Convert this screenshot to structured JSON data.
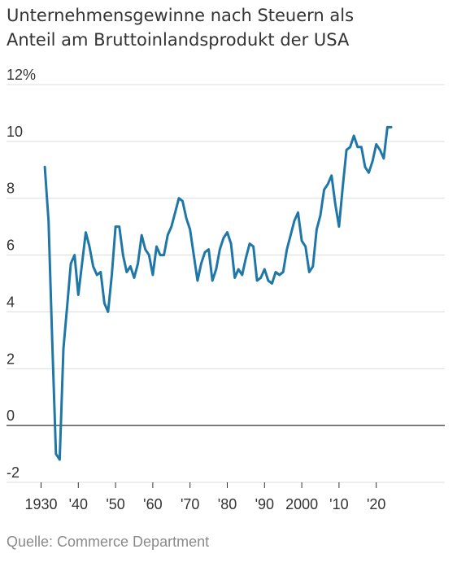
{
  "title_line1": "Unternehmensgewinne nach Steuern als",
  "title_line2": "Anteil am Bruttoinlandsprodukt der USA",
  "source": "Quelle: Commerce Department",
  "colors": {
    "line": "#1f77a8",
    "grid": "#dcdcdc",
    "zero": "#333333",
    "text": "#333333",
    "source": "#8a8a8a"
  },
  "chart_data": {
    "type": "line",
    "title": "Unternehmensgewinne nach Steuern als Anteil am Bruttoinlandsprodukt der USA",
    "xlabel": "",
    "ylabel": "",
    "xlim": [
      1929,
      2024
    ],
    "ylim": [
      -2,
      12
    ],
    "grid": true,
    "y_ticks": [
      {
        "value": 12,
        "label": "12%"
      },
      {
        "value": 10,
        "label": "10"
      },
      {
        "value": 8,
        "label": "8"
      },
      {
        "value": 6,
        "label": "6"
      },
      {
        "value": 4,
        "label": "4"
      },
      {
        "value": 2,
        "label": "2"
      },
      {
        "value": 0,
        "label": "0"
      },
      {
        "value": -2,
        "label": "-2"
      }
    ],
    "x_ticks": [
      {
        "value": 1930,
        "label": "1930"
      },
      {
        "value": 1940,
        "label": "'40"
      },
      {
        "value": 1950,
        "label": "'50"
      },
      {
        "value": 1960,
        "label": "'60"
      },
      {
        "value": 1970,
        "label": "'70"
      },
      {
        "value": 1980,
        "label": "'80"
      },
      {
        "value": 1990,
        "label": "'90"
      },
      {
        "value": 2000,
        "label": "2000"
      },
      {
        "value": 2010,
        "label": "'10"
      },
      {
        "value": 2020,
        "label": "'20"
      }
    ],
    "series": [
      {
        "x": [
          1931,
          1932,
          1933,
          1934,
          1935,
          1936,
          1937,
          1938,
          1939,
          1940,
          1941,
          1942,
          1943,
          1944,
          1945,
          1946,
          1947,
          1948,
          1949,
          1950,
          1951,
          1952,
          1953,
          1954,
          1955,
          1956,
          1957,
          1958,
          1959,
          1960,
          1961,
          1962,
          1963,
          1964,
          1965,
          1966,
          1967,
          1968,
          1969,
          1970,
          1971,
          1972,
          1973,
          1974,
          1975,
          1976,
          1977,
          1978,
          1979,
          1980,
          1981,
          1982,
          1983,
          1984,
          1985,
          1986,
          1987,
          1988,
          1989,
          1990,
          1991,
          1992,
          1993,
          1994,
          1995,
          1996,
          1997,
          1998,
          1999,
          2000,
          2001,
          2002,
          2003,
          2004,
          2005,
          2006,
          2007,
          2008,
          2009,
          2010,
          2011,
          2012,
          2013,
          2014,
          2015,
          2016,
          2017,
          2018,
          2019,
          2020,
          2021,
          2022,
          2023,
          2024
        ],
        "y": [
          9.1,
          7.2,
          3.0,
          -1.0,
          -1.2,
          2.7,
          4.2,
          5.7,
          6.0,
          4.6,
          5.7,
          6.8,
          6.3,
          5.6,
          5.3,
          5.4,
          4.3,
          4.0,
          5.3,
          7.0,
          7.0,
          6.0,
          5.4,
          5.6,
          5.2,
          5.7,
          6.7,
          6.2,
          6.0,
          5.3,
          6.3,
          6.0,
          6.0,
          6.7,
          7.0,
          7.5,
          8.0,
          7.9,
          7.3,
          6.9,
          6.0,
          5.1,
          5.7,
          6.1,
          6.2,
          5.1,
          5.5,
          6.2,
          6.6,
          6.8,
          6.4,
          5.2,
          5.5,
          5.3,
          5.9,
          6.4,
          6.3,
          5.1,
          5.2,
          5.5,
          5.1,
          5.0,
          5.4,
          5.3,
          5.4,
          6.2,
          6.7,
          7.2,
          7.5,
          6.5,
          6.3,
          5.4,
          5.6,
          6.9,
          7.4,
          8.3,
          8.5,
          8.8,
          7.8,
          7.0,
          8.4,
          9.7,
          9.8,
          10.2,
          9.8,
          9.8,
          9.1,
          8.9,
          9.3,
          9.9,
          9.7,
          9.4,
          10.5,
          10.5
        ]
      }
    ]
  }
}
